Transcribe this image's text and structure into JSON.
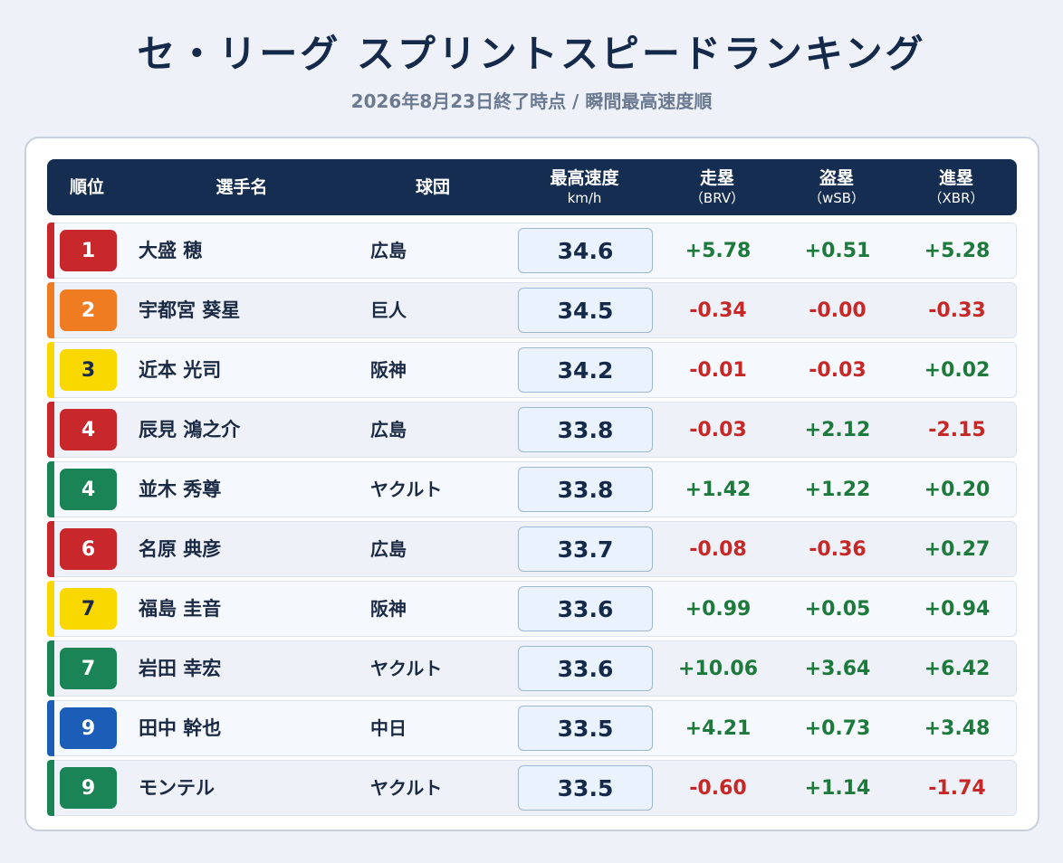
{
  "title": "セ・リーグ スプリントスピードランキング",
  "subtitle": "2026年8月23日終了時点 / 瞬間最高速度順",
  "headers": {
    "rank": "順位",
    "player": "選手名",
    "team": "球団",
    "speed": "最高速度",
    "speed_unit": "km/h",
    "brv": "走塁",
    "brv_sub": "（BRV）",
    "wsb": "盗塁",
    "wsb_sub": "（wSB）",
    "xbr": "進塁",
    "xbr_sub": "（XBR）"
  },
  "team_colors": {
    "広島": "#c8282c",
    "巨人": "#f07c22",
    "阪神": "#f9d800",
    "ヤクルト": "#1a8456",
    "中日": "#1c5db8"
  },
  "rows": [
    {
      "rank": "1",
      "name": "大盛 穂",
      "team": "広島",
      "speed": "34.6",
      "brv": "+5.78",
      "wsb": "+0.51",
      "xbr": "+5.28"
    },
    {
      "rank": "2",
      "name": "宇都宮 葵星",
      "team": "巨人",
      "speed": "34.5",
      "brv": "-0.34",
      "wsb": "-0.00",
      "xbr": "-0.33"
    },
    {
      "rank": "3",
      "name": "近本 光司",
      "team": "阪神",
      "speed": "34.2",
      "brv": "-0.01",
      "wsb": "-0.03",
      "xbr": "+0.02"
    },
    {
      "rank": "4",
      "name": "辰見 鴻之介",
      "team": "広島",
      "speed": "33.8",
      "brv": "-0.03",
      "wsb": "+2.12",
      "xbr": "-2.15"
    },
    {
      "rank": "4",
      "name": "並木 秀尊",
      "team": "ヤクルト",
      "speed": "33.8",
      "brv": "+1.42",
      "wsb": "+1.22",
      "xbr": "+0.20"
    },
    {
      "rank": "6",
      "name": "名原 典彦",
      "team": "広島",
      "speed": "33.7",
      "brv": "-0.08",
      "wsb": "-0.36",
      "xbr": "+0.27"
    },
    {
      "rank": "7",
      "name": "福島 圭音",
      "team": "阪神",
      "speed": "33.6",
      "brv": "+0.99",
      "wsb": "+0.05",
      "xbr": "+0.94"
    },
    {
      "rank": "7",
      "name": "岩田 幸宏",
      "team": "ヤクルト",
      "speed": "33.6",
      "brv": "+10.06",
      "wsb": "+3.64",
      "xbr": "+6.42"
    },
    {
      "rank": "9",
      "name": "田中 幹也",
      "team": "中日",
      "speed": "33.5",
      "brv": "+4.21",
      "wsb": "+0.73",
      "xbr": "+3.48"
    },
    {
      "rank": "9",
      "name": "モンテル",
      "team": "ヤクルト",
      "speed": "33.5",
      "brv": "-0.60",
      "wsb": "+1.14",
      "xbr": "-1.74"
    }
  ]
}
